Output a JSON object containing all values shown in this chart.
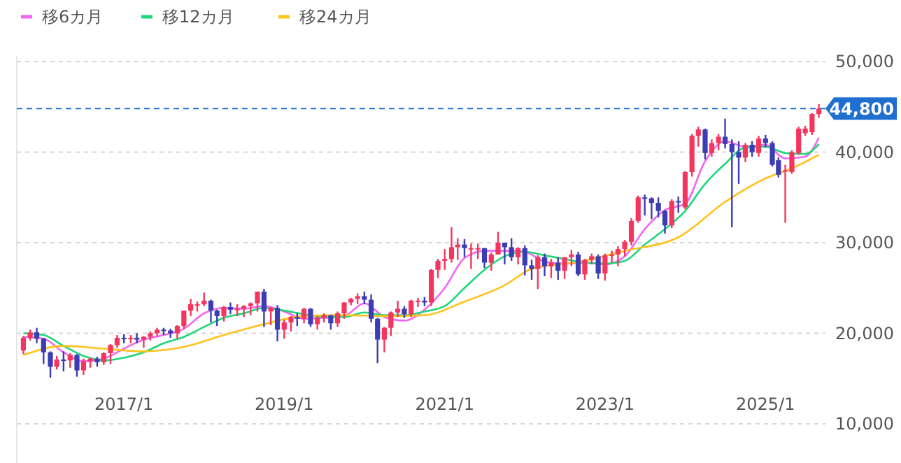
{
  "chart_data": {
    "type": "candlestick",
    "legend": "top left",
    "grid": "y",
    "xlim": [
      "2015-09",
      "2025-10"
    ],
    "xticks": [
      {
        "value": "2017-01",
        "label": "2017/1"
      },
      {
        "value": "2019-01",
        "label": "2019/1"
      },
      {
        "value": "2021-01",
        "label": "2021/1"
      },
      {
        "value": "2023-01",
        "label": "2023/1"
      },
      {
        "value": "2025-01",
        "label": "2025/1"
      }
    ],
    "ylim": [
      10000,
      50000
    ],
    "yticks": [
      {
        "value": 10000,
        "label": "10,000"
      },
      {
        "value": 20000,
        "label": "20,000"
      },
      {
        "value": 30000,
        "label": "30,000"
      },
      {
        "value": 40000,
        "label": "40,000"
      },
      {
        "value": 50000,
        "label": "50,000"
      }
    ],
    "ref_lines": [
      {
        "axis": "y",
        "value": 44800,
        "label": "44,800",
        "color": "#1f6fd1",
        "line_style": "dashed"
      }
    ],
    "x": [
      "2015-10",
      "2015-11",
      "2015-12",
      "2016-01",
      "2016-02",
      "2016-03",
      "2016-04",
      "2016-05",
      "2016-06",
      "2016-07",
      "2016-08",
      "2016-09",
      "2016-10",
      "2016-11",
      "2016-12",
      "2017-01",
      "2017-02",
      "2017-03",
      "2017-04",
      "2017-05",
      "2017-06",
      "2017-07",
      "2017-08",
      "2017-09",
      "2017-10",
      "2017-11",
      "2017-12",
      "2018-01",
      "2018-02",
      "2018-03",
      "2018-04",
      "2018-05",
      "2018-06",
      "2018-07",
      "2018-08",
      "2018-09",
      "2018-10",
      "2018-11",
      "2018-12",
      "2019-01",
      "2019-02",
      "2019-03",
      "2019-04",
      "2019-05",
      "2019-06",
      "2019-07",
      "2019-08",
      "2019-09",
      "2019-10",
      "2019-11",
      "2019-12",
      "2020-01",
      "2020-02",
      "2020-03",
      "2020-04",
      "2020-05",
      "2020-06",
      "2020-07",
      "2020-08",
      "2020-09",
      "2020-10",
      "2020-11",
      "2020-12",
      "2021-01",
      "2021-02",
      "2021-03",
      "2021-04",
      "2021-05",
      "2021-06",
      "2021-07",
      "2021-08",
      "2021-09",
      "2021-10",
      "2021-11",
      "2021-12",
      "2022-01",
      "2022-02",
      "2022-03",
      "2022-04",
      "2022-05",
      "2022-06",
      "2022-07",
      "2022-08",
      "2022-09",
      "2022-10",
      "2022-11",
      "2022-12",
      "2023-01",
      "2023-02",
      "2023-03",
      "2023-04",
      "2023-05",
      "2023-06",
      "2023-07",
      "2023-08",
      "2023-09",
      "2023-10",
      "2023-11",
      "2023-12",
      "2024-01",
      "2024-02",
      "2024-03",
      "2024-04",
      "2024-05",
      "2024-06",
      "2024-07",
      "2024-08",
      "2024-09",
      "2024-10",
      "2024-11",
      "2024-12",
      "2025-01",
      "2025-02",
      "2025-03",
      "2025-04",
      "2025-05",
      "2025-06",
      "2025-07",
      "2025-08",
      "2025-09"
    ],
    "ohlc": [
      [
        18100,
        19700,
        17700,
        19500
      ],
      [
        19500,
        20400,
        19200,
        20100
      ],
      [
        20100,
        20600,
        18900,
        19400
      ],
      [
        19400,
        19500,
        16600,
        17900
      ],
      [
        17900,
        18000,
        15100,
        16300
      ],
      [
        16300,
        17500,
        16000,
        17100
      ],
      [
        17100,
        18000,
        15800,
        17000
      ],
      [
        17000,
        17800,
        16200,
        17600
      ],
      [
        17600,
        17700,
        15200,
        15900
      ],
      [
        15900,
        17200,
        15400,
        16900
      ],
      [
        16900,
        17300,
        16200,
        17200
      ],
      [
        17200,
        17400,
        16300,
        16800
      ],
      [
        16800,
        17900,
        16500,
        17800
      ],
      [
        17800,
        18800,
        16600,
        18700
      ],
      [
        18700,
        19800,
        18400,
        19500
      ],
      [
        19500,
        19900,
        18900,
        19400
      ],
      [
        19400,
        19800,
        18900,
        19500
      ],
      [
        19500,
        20000,
        18900,
        19300
      ],
      [
        19300,
        19700,
        18400,
        19600
      ],
      [
        19600,
        20200,
        19200,
        20000
      ],
      [
        20000,
        20600,
        19700,
        20400
      ],
      [
        20400,
        20600,
        19800,
        20300
      ],
      [
        20300,
        20500,
        19500,
        20000
      ],
      [
        20000,
        20900,
        19400,
        20800
      ],
      [
        20800,
        22500,
        20500,
        22500
      ],
      [
        22500,
        23800,
        21900,
        23200
      ],
      [
        23200,
        23500,
        22400,
        23200
      ],
      [
        23200,
        24500,
        23000,
        23600
      ],
      [
        23600,
        23700,
        21200,
        22500
      ],
      [
        22500,
        22600,
        20800,
        21900
      ],
      [
        21900,
        23000,
        21300,
        22900
      ],
      [
        22900,
        23400,
        22100,
        22600
      ],
      [
        22600,
        23200,
        21900,
        22700
      ],
      [
        22700,
        23100,
        21800,
        23000
      ],
      [
        23000,
        23400,
        22000,
        23300
      ],
      [
        23300,
        24600,
        22400,
        24600
      ],
      [
        24600,
        24900,
        20700,
        22400
      ],
      [
        22400,
        22900,
        20900,
        22800
      ],
      [
        22800,
        23100,
        19100,
        20400
      ],
      [
        20400,
        21500,
        19400,
        21200
      ],
      [
        21200,
        21900,
        20200,
        21800
      ],
      [
        21800,
        22200,
        20800,
        21600
      ],
      [
        21600,
        22800,
        21100,
        22700
      ],
      [
        22700,
        22800,
        20700,
        21000
      ],
      [
        21000,
        21900,
        20400,
        21700
      ],
      [
        21700,
        22200,
        21200,
        22000
      ],
      [
        22000,
        22000,
        20400,
        21100
      ],
      [
        21100,
        22400,
        20700,
        22200
      ],
      [
        22200,
        23400,
        21600,
        23400
      ],
      [
        23400,
        23900,
        23100,
        23800
      ],
      [
        23800,
        24400,
        23200,
        24100
      ],
      [
        24100,
        24600,
        23200,
        23700
      ],
      [
        23700,
        24300,
        21200,
        21600
      ],
      [
        21600,
        21700,
        16700,
        19300
      ],
      [
        19300,
        20700,
        17900,
        20600
      ],
      [
        20600,
        22400,
        19700,
        22300
      ],
      [
        22300,
        23600,
        21800,
        22700
      ],
      [
        22700,
        23000,
        21700,
        22100
      ],
      [
        22100,
        23700,
        21800,
        23600
      ],
      [
        23600,
        23900,
        22900,
        23600
      ],
      [
        23600,
        24000,
        23000,
        23400
      ],
      [
        23400,
        27100,
        23000,
        27000
      ],
      [
        27000,
        28200,
        26100,
        28000
      ],
      [
        28000,
        29300,
        27000,
        28200
      ],
      [
        28200,
        31700,
        27800,
        29500
      ],
      [
        29500,
        30500,
        28100,
        29800
      ],
      [
        29800,
        30400,
        28400,
        29400
      ],
      [
        29400,
        29900,
        27100,
        29400
      ],
      [
        29400,
        29900,
        28200,
        29400
      ],
      [
        29400,
        29400,
        27200,
        27800
      ],
      [
        27800,
        28900,
        26900,
        28700
      ],
      [
        28700,
        31200,
        28700,
        30000
      ],
      [
        30000,
        30000,
        27600,
        29500
      ],
      [
        29500,
        30500,
        28000,
        28400
      ],
      [
        28400,
        29500,
        27600,
        29400
      ],
      [
        29400,
        29700,
        26400,
        27500
      ],
      [
        27500,
        28100,
        25900,
        27100
      ],
      [
        27100,
        28600,
        24900,
        28400
      ],
      [
        28400,
        28800,
        26300,
        27400
      ],
      [
        27400,
        28200,
        26100,
        27800
      ],
      [
        27800,
        28400,
        25900,
        26900
      ],
      [
        26900,
        28400,
        26000,
        28400
      ],
      [
        28400,
        29200,
        27400,
        28700
      ],
      [
        28700,
        29000,
        26300,
        26500
      ],
      [
        26500,
        28200,
        25900,
        28100
      ],
      [
        28100,
        28800,
        27600,
        28500
      ],
      [
        28500,
        28700,
        26000,
        26600
      ],
      [
        26600,
        28800,
        25800,
        28600
      ],
      [
        28600,
        29100,
        27800,
        28700
      ],
      [
        28700,
        29600,
        27400,
        29300
      ],
      [
        29300,
        30300,
        28500,
        30100
      ],
      [
        30100,
        32700,
        29700,
        32400
      ],
      [
        32400,
        35200,
        32200,
        35000
      ],
      [
        35000,
        35300,
        33000,
        34900
      ],
      [
        34900,
        35000,
        32600,
        34400
      ],
      [
        34400,
        35000,
        32800,
        33500
      ],
      [
        33500,
        33600,
        31000,
        31900
      ],
      [
        31900,
        34800,
        31600,
        34600
      ],
      [
        34600,
        35100,
        33300,
        34500
      ],
      [
        33900,
        37900,
        33700,
        37800
      ],
      [
        37800,
        42000,
        37300,
        41800
      ],
      [
        41800,
        42800,
        40600,
        42500
      ],
      [
        42500,
        42600,
        39200,
        39900
      ],
      [
        39900,
        41400,
        39500,
        41000
      ],
      [
        41000,
        42000,
        40200,
        41700
      ],
      [
        41700,
        43700,
        40400,
        40900
      ],
      [
        40900,
        41400,
        31700,
        40000
      ],
      [
        40000,
        41200,
        36500,
        39400
      ],
      [
        39400,
        41000,
        38900,
        40800
      ],
      [
        40800,
        41200,
        39500,
        40000
      ],
      [
        39900,
        41800,
        39500,
        41500
      ],
      [
        41500,
        41900,
        40500,
        41000
      ],
      [
        41000,
        41200,
        38400,
        38600
      ],
      [
        39100,
        39400,
        37200,
        37500
      ],
      [
        37900,
        38600,
        32200,
        38000
      ],
      [
        37800,
        40200,
        37600,
        40000
      ],
      [
        39900,
        42800,
        39700,
        42600
      ],
      [
        42100,
        42900,
        41800,
        42600
      ],
      [
        42200,
        44300,
        41900,
        44200
      ],
      [
        44200,
        45300,
        43800,
        44800
      ]
    ],
    "series": [
      {
        "name": "移6カ月",
        "type": "line",
        "color": "#f266f2",
        "x": [
          "2015-10",
          "2016-01",
          "2016-04",
          "2016-07",
          "2016-10",
          "2017-01",
          "2017-04",
          "2017-07",
          "2017-10",
          "2018-01",
          "2018-04",
          "2018-07",
          "2018-10",
          "2019-01",
          "2019-04",
          "2019-07",
          "2019-10",
          "2020-01",
          "2020-04",
          "2020-07",
          "2020-10",
          "2021-01",
          "2021-04",
          "2021-07",
          "2021-10",
          "2022-01",
          "2022-04",
          "2022-07",
          "2022-10",
          "2023-01",
          "2023-04",
          "2023-07",
          "2023-10",
          "2024-01",
          "2024-04",
          "2024-07",
          "2024-10",
          "2025-01",
          "2025-04",
          "2025-07",
          "2025-09"
        ],
        "values": [
          19600,
          19400,
          17900,
          16900,
          17200,
          18300,
          19300,
          19800,
          20500,
          22200,
          22800,
          22700,
          23000,
          22400,
          21600,
          21700,
          21900,
          23300,
          21800,
          21400,
          22600,
          25000,
          28300,
          29100,
          29100,
          29000,
          27900,
          27700,
          27800,
          27600,
          28500,
          31500,
          33600,
          34300,
          39000,
          41200,
          40600,
          40800,
          39300,
          39500,
          41600
        ]
      },
      {
        "name": "移12カ月",
        "type": "line",
        "color": "#1fd67a",
        "x": [
          "2015-10",
          "2016-01",
          "2016-04",
          "2016-07",
          "2016-10",
          "2017-01",
          "2017-04",
          "2017-07",
          "2017-10",
          "2018-01",
          "2018-04",
          "2018-07",
          "2018-10",
          "2019-01",
          "2019-04",
          "2019-07",
          "2019-10",
          "2020-01",
          "2020-04",
          "2020-07",
          "2020-10",
          "2021-01",
          "2021-04",
          "2021-07",
          "2021-10",
          "2022-01",
          "2022-04",
          "2022-07",
          "2022-10",
          "2023-01",
          "2023-04",
          "2023-07",
          "2023-10",
          "2024-01",
          "2024-04",
          "2024-07",
          "2024-10",
          "2025-01",
          "2025-04",
          "2025-07",
          "2025-09"
        ],
        "values": [
          20000,
          19800,
          18600,
          17500,
          17000,
          17300,
          17900,
          18900,
          19600,
          20700,
          21700,
          22200,
          22800,
          22500,
          22100,
          21800,
          21800,
          22300,
          22000,
          22000,
          22400,
          23000,
          25000,
          27000,
          28500,
          29000,
          28600,
          28200,
          27800,
          27700,
          28000,
          29800,
          31500,
          33500,
          36500,
          38700,
          40500,
          40600,
          39900,
          39800,
          40900
        ]
      },
      {
        "name": "移24カ月",
        "type": "line",
        "color": "#ffc21a",
        "x": [
          "2015-10",
          "2016-04",
          "2016-10",
          "2017-04",
          "2017-10",
          "2018-04",
          "2018-10",
          "2019-04",
          "2019-10",
          "2020-04",
          "2020-10",
          "2021-04",
          "2021-10",
          "2022-02",
          "2022-10",
          "2023-04",
          "2023-12",
          "2024-07",
          "2025-01",
          "2025-05",
          "2025-09"
        ],
        "values": [
          17600,
          18600,
          18300,
          18000,
          18500,
          19800,
          21000,
          21900,
          22000,
          21900,
          22000,
          23500,
          25300,
          27100,
          28000,
          29100,
          30600,
          34500,
          37100,
          38200,
          39700
        ]
      }
    ]
  }
}
